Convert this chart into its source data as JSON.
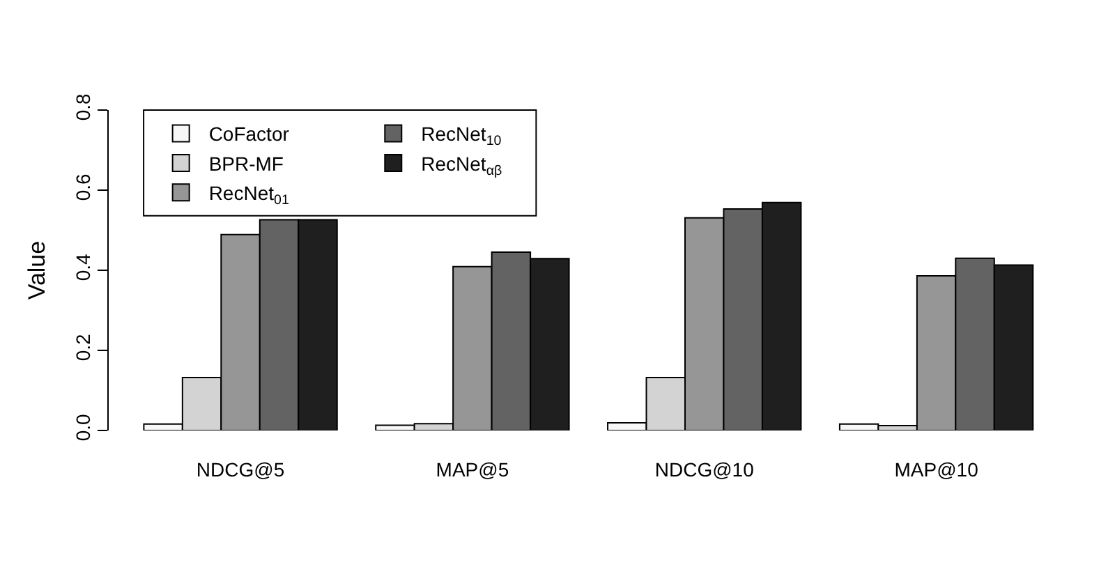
{
  "chart_data": {
    "type": "bar",
    "categories": [
      "NDCG@5",
      "MAP@5",
      "NDCG@10",
      "MAP@10"
    ],
    "ylabel": "Value",
    "series": [
      {
        "name": "CoFactor",
        "color": "#f7f7f7",
        "values": [
          0.016,
          0.013,
          0.019,
          0.016
        ]
      },
      {
        "name": "BPR-MF",
        "color": "#d3d3d3",
        "values": [
          0.132,
          0.017,
          0.132,
          0.012
        ]
      },
      {
        "name": "RecNet$_{01}$",
        "color": "#969696",
        "values": [
          0.489,
          0.409,
          0.531,
          0.386
        ]
      },
      {
        "name": "RecNet$_{10}$",
        "color": "#636363",
        "values": [
          0.526,
          0.445,
          0.553,
          0.43
        ]
      },
      {
        "name": "RecNet$_{αβ}$",
        "color": "#1f1f1f",
        "values": [
          0.526,
          0.429,
          0.569,
          0.413
        ]
      }
    ],
    "ylim": [
      0,
      0.8
    ],
    "yticks": [
      {
        "value": 0,
        "label": "0.0"
      },
      0.2,
      0.4,
      0.6,
      0.8
    ],
    "legend": "top left"
  }
}
